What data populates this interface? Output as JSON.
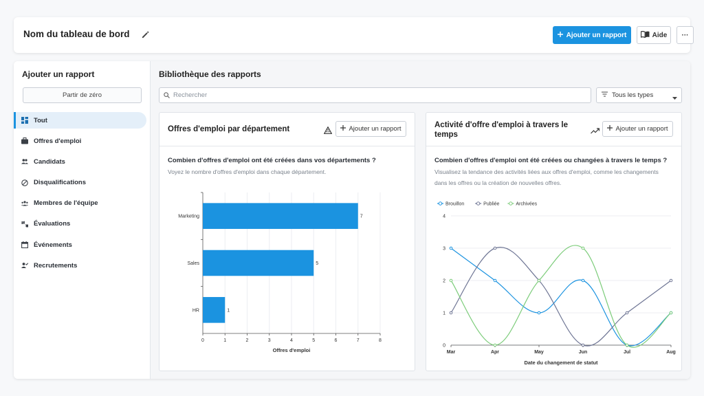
{
  "header": {
    "title": "Nom du tableau de bord",
    "add_report_label": "Ajouter un rapport",
    "help_label": "Aide",
    "more_label": "···",
    "accent": "#1b93e0"
  },
  "sidebar": {
    "title": "Ajouter un rapport",
    "scratch_label": "Partir de zéro",
    "items": [
      {
        "label": "Tout",
        "icon": "grid-icon"
      },
      {
        "label": "Offres d'emploi",
        "icon": "briefcase-icon"
      },
      {
        "label": "Candidats",
        "icon": "people-icon"
      },
      {
        "label": "Disqualifications",
        "icon": "block-icon"
      },
      {
        "label": "Membres de l'équipe",
        "icon": "team-icon"
      },
      {
        "label": "Évaluations",
        "icon": "thumbs-icon"
      },
      {
        "label": "Événements",
        "icon": "calendar-icon"
      },
      {
        "label": "Recrutements",
        "icon": "person-check-icon"
      }
    ]
  },
  "library": {
    "title": "Bibliothèque des rapports",
    "search_placeholder": "Rechercher",
    "filter_label": "Tous les types"
  },
  "cards": [
    {
      "title": "Offres d'emploi par département",
      "add_label": "Ajouter un rapport",
      "question": "Combien d'offres d'emploi ont été créées dans vos départements ?",
      "description": "Voyez le nombre d'offres d'emploi dans chaque département."
    },
    {
      "title_line1": "Activité d'offre d'emploi à travers le",
      "title_line2": "temps",
      "add_label": "Ajouter un rapport",
      "question": "Combien d'offres d'emploi ont été créées ou changées à travers le temps ?",
      "description": "Visualisez la tendance des activités liées aux offres d'emploi, comme les changements dans les offres ou la création de nouvelles offres."
    }
  ],
  "chart_data": [
    {
      "type": "bar",
      "orientation": "horizontal",
      "categories": [
        "Marketing",
        "Sales",
        "HR"
      ],
      "values": [
        7,
        5,
        1
      ],
      "xlabel": "Offres d'emploi",
      "ylabel": "",
      "xlim": [
        0,
        8
      ],
      "ticks": [
        "0",
        "1",
        "2",
        "3",
        "4",
        "5",
        "6",
        "7",
        "8"
      ],
      "color": "#1b93e0",
      "grid": true
    },
    {
      "type": "line",
      "x": [
        "Mar",
        "Apr",
        "May",
        "Jun",
        "Jul",
        "Aug"
      ],
      "series": [
        {
          "name": "Brouillon",
          "values": [
            3,
            2,
            1,
            2,
            0,
            1
          ],
          "color": "#1b93e0"
        },
        {
          "name": "Publiée",
          "values": [
            1,
            3,
            2,
            0,
            1,
            2
          ],
          "color": "#6e7594"
        },
        {
          "name": "Archivées",
          "values": [
            2,
            0,
            2,
            3,
            0,
            1
          ],
          "color": "#7ccc7a"
        }
      ],
      "xlabel": "Date du changement de statut",
      "ylabel": "",
      "ylim": [
        0,
        4
      ],
      "yticks": [
        "0",
        "1",
        "2",
        "3",
        "4"
      ],
      "legend": "top-left",
      "grid": true
    }
  ]
}
